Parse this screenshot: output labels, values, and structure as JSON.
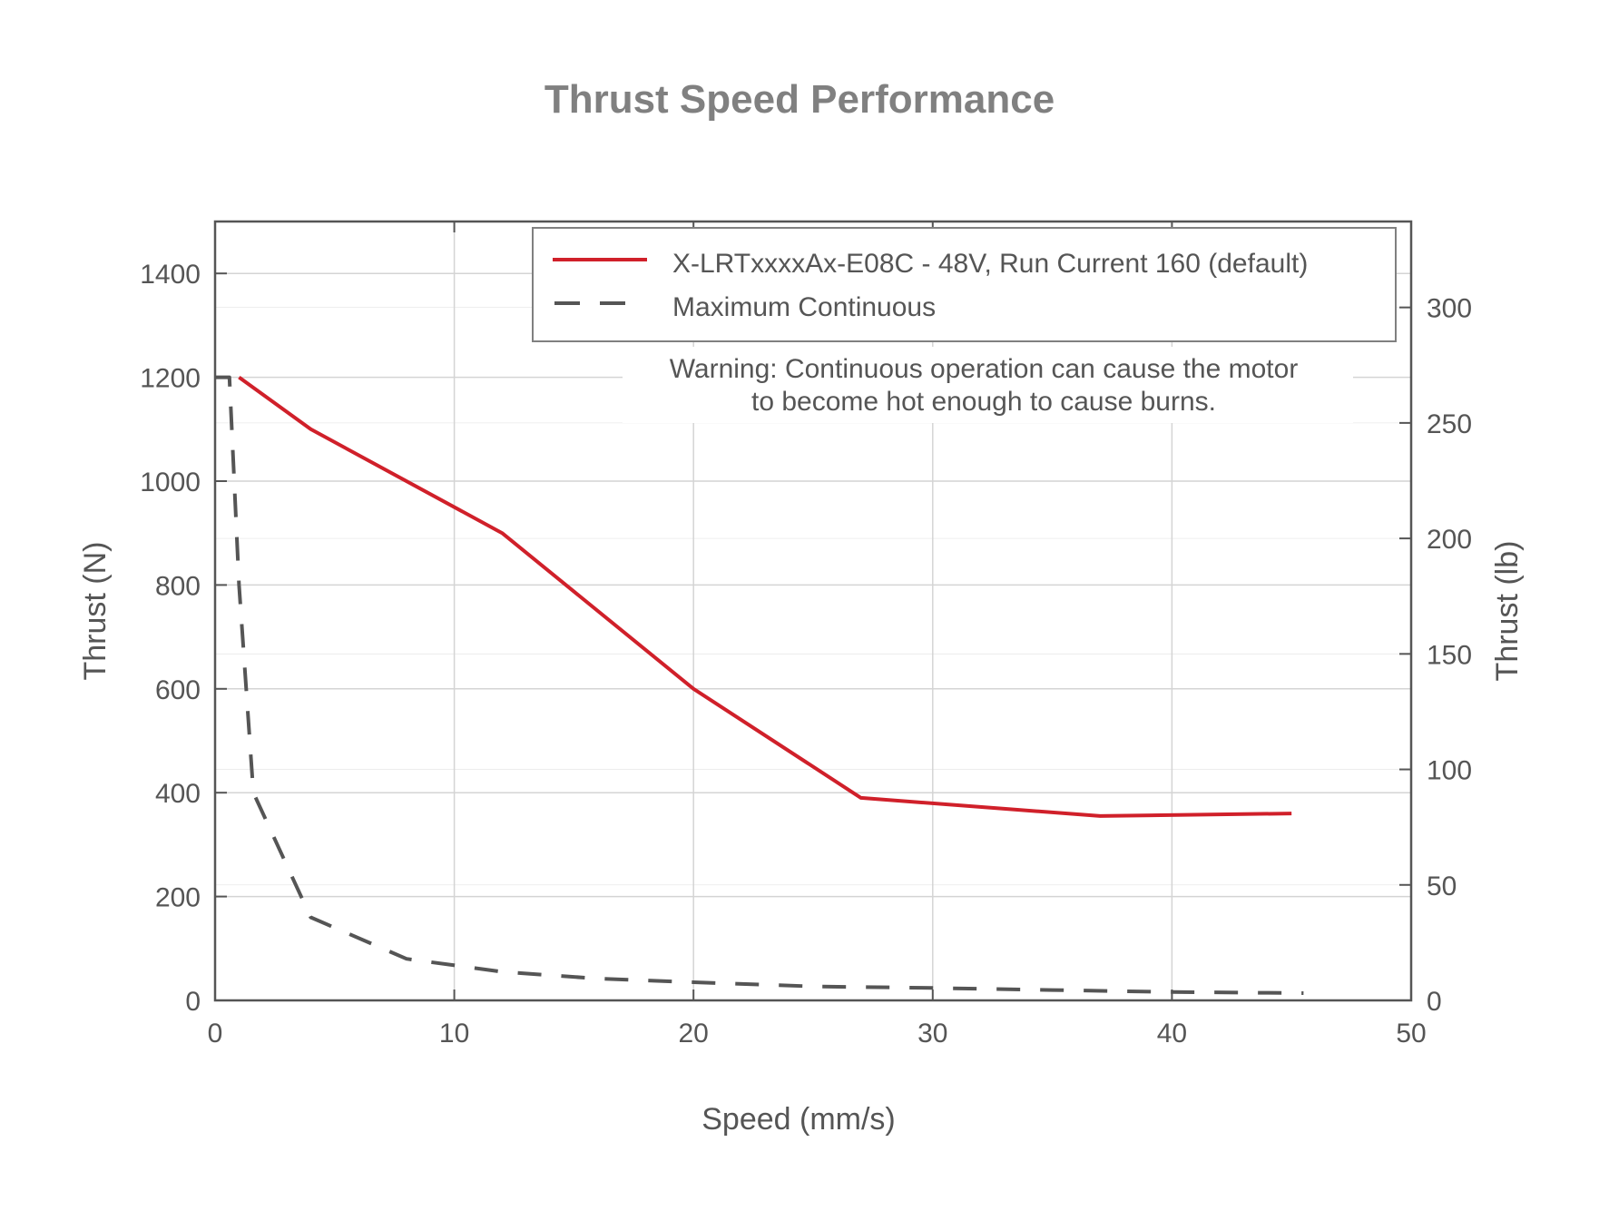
{
  "chart_data": {
    "type": "line",
    "title": "Thrust Speed Performance",
    "xlabel": "Speed (mm/s)",
    "ylabel": "Thrust (N)",
    "ylabel_right": "Thrust (lb)",
    "xlim": [
      0,
      50
    ],
    "ylim": [
      0,
      1500
    ],
    "ylim_right": [
      0,
      337.2
    ],
    "xticks": [
      0,
      10,
      20,
      30,
      40,
      50
    ],
    "yticks": [
      0,
      200,
      400,
      600,
      800,
      1000,
      1200,
      1400
    ],
    "yticks_right": [
      0,
      50,
      100,
      150,
      200,
      250,
      300
    ],
    "grid": true,
    "legend_position": "upper right",
    "series": [
      {
        "name": "X-LRTxxxxAx-E08C - 48V, Run Current 160 (default)",
        "color": "#d0202a",
        "style": "solid",
        "x": [
          1,
          4,
          12,
          20,
          27,
          37,
          45
        ],
        "y": [
          1200,
          1100,
          900,
          600,
          390,
          355,
          360
        ]
      },
      {
        "name": "Maximum Continuous",
        "color": "#555555",
        "style": "dashed",
        "x": [
          0,
          0.6,
          1,
          1.6,
          4,
          8,
          12,
          16,
          20,
          25,
          30,
          35,
          40,
          45.5
        ],
        "y": [
          1200,
          1200,
          800,
          400,
          160,
          80,
          55,
          42,
          35,
          27,
          24,
          20,
          16,
          14
        ]
      }
    ],
    "annotations": [
      "Warning: Continuous operation can cause the motor",
      "to become hot enough to cause burns."
    ]
  },
  "colors": {
    "axis": "#555555",
    "grid": "#d4d4d4",
    "title": "#808080",
    "legend_border": "#808080"
  }
}
